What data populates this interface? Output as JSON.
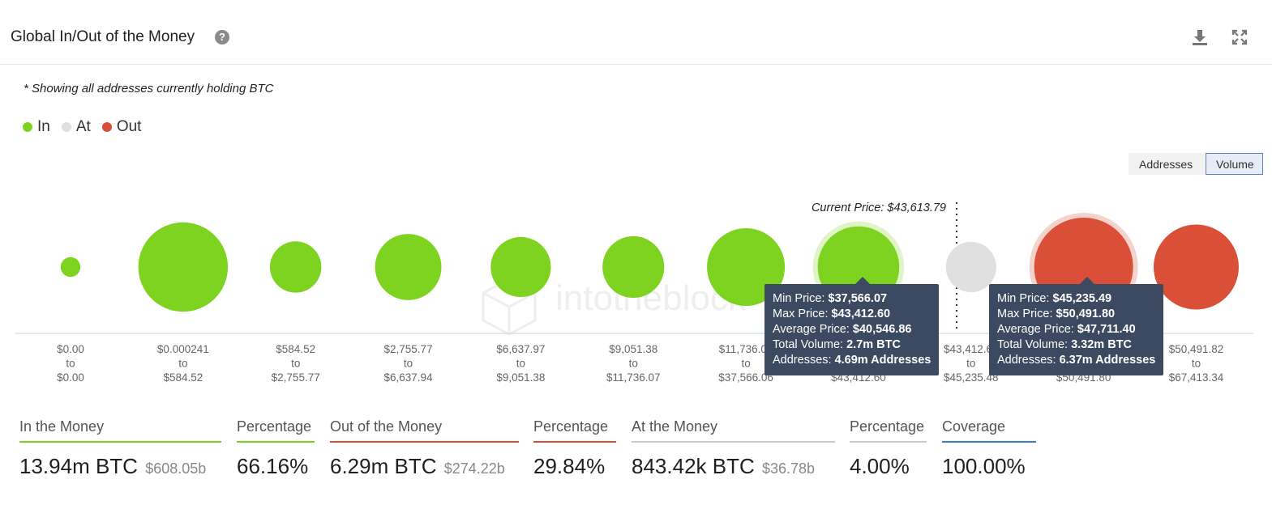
{
  "header": {
    "title": "Global In/Out of the Money",
    "help_icon": "?"
  },
  "note": "* Showing all addresses currently holding BTC",
  "legend": [
    {
      "label": "In",
      "color": "#7ed321"
    },
    {
      "label": "At",
      "color": "#e0e0e0"
    },
    {
      "label": "Out",
      "color": "#d94f38"
    }
  ],
  "toggles": {
    "addresses": "Addresses",
    "volume": "Volume"
  },
  "current_price_label": "Current Price: $43,613.79",
  "watermark": "intotheblock",
  "chart_data": {
    "type": "bubble",
    "categories": [
      {
        "from": "$0.00",
        "to": "$0.00"
      },
      {
        "from": "$0.000241",
        "to": "$584.52"
      },
      {
        "from": "$584.52",
        "to": "$2,755.77"
      },
      {
        "from": "$2,755.77",
        "to": "$6,637.94"
      },
      {
        "from": "$6,637.97",
        "to": "$9,051.38"
      },
      {
        "from": "$9,051.38",
        "to": "$11,736.07"
      },
      {
        "from": "$11,736.07",
        "to": "$37,566.06"
      },
      {
        "from": "$37,566.07",
        "to": "$43,412.60"
      },
      {
        "from": "$43,412.61",
        "to": "$45,235.48"
      },
      {
        "from": "$45,235.49",
        "to": "$50,491.80"
      },
      {
        "from": "$50,491.82",
        "to": "$67,413.34"
      }
    ],
    "status": [
      "In",
      "In",
      "In",
      "In",
      "In",
      "In",
      "In",
      "In",
      "At",
      "Out",
      "Out"
    ],
    "relative_volume": [
      0.04,
      0.82,
      0.27,
      0.45,
      0.37,
      0.39,
      0.62,
      0.68,
      0.26,
      1.0,
      0.74
    ],
    "highlighted": [
      7,
      9
    ],
    "colors": {
      "In": "#7ed321",
      "At": "#e0e0e0",
      "Out": "#d94f38"
    }
  },
  "tooltips": [
    {
      "rows": [
        {
          "label": "Min Price: ",
          "value": "$37,566.07"
        },
        {
          "label": "Max Price: ",
          "value": "$43,412.60"
        },
        {
          "label": "Average Price: ",
          "value": "$40,546.86"
        },
        {
          "label": "Total Volume: ",
          "value": "2.7m BTC"
        },
        {
          "label": "Addresses: ",
          "value": "4.69m Addresses"
        }
      ]
    },
    {
      "rows": [
        {
          "label": "Min Price: ",
          "value": "$45,235.49"
        },
        {
          "label": "Max Price: ",
          "value": "$50,491.80"
        },
        {
          "label": "Average Price: ",
          "value": "$47,711.40"
        },
        {
          "label": "Total Volume: ",
          "value": "3.32m BTC"
        },
        {
          "label": "Addresses: ",
          "value": "6.37m Addresses"
        }
      ]
    }
  ],
  "stats": {
    "in_money": {
      "label": "In the Money",
      "value": "13.94m BTC",
      "sub": "$608.05b",
      "color": "#7ed321"
    },
    "in_pct": {
      "label": "Percentage",
      "value": "66.16%",
      "color": "#7ed321"
    },
    "out_money": {
      "label": "Out of the Money",
      "value": "6.29m BTC",
      "sub": "$274.22b",
      "color": "#d94f38"
    },
    "out_pct": {
      "label": "Percentage",
      "value": "29.84%",
      "color": "#d94f38"
    },
    "at_money": {
      "label": "At the Money",
      "value": "843.42k BTC",
      "sub": "$36.78b",
      "color": "#cccccc"
    },
    "at_pct": {
      "label": "Percentage",
      "value": "4.00%",
      "color": "#cccccc"
    },
    "coverage": {
      "label": "Coverage",
      "value": "100.00%",
      "color": "#3b7dc4"
    }
  }
}
